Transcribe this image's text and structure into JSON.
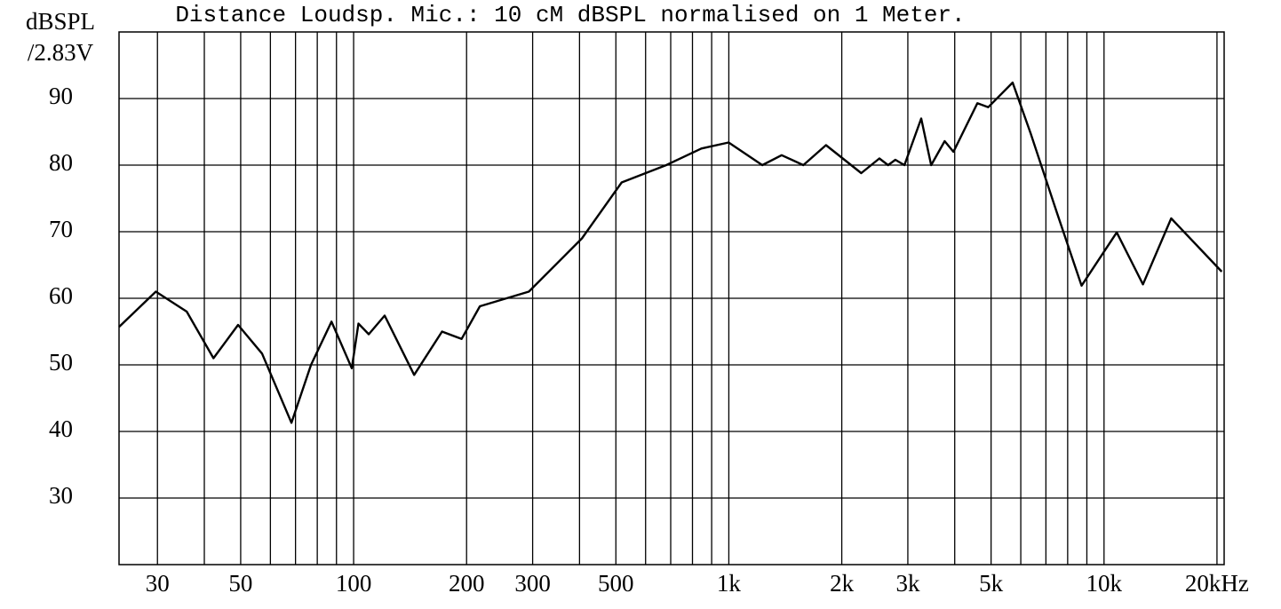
{
  "chart_data": {
    "type": "line",
    "title": "Distance Loudsp. Mic.: 10 cM dBSPL normalised on 1 Meter.",
    "y_label": [
      "dBSPL",
      "/2.83V"
    ],
    "log_x": true,
    "grid": true,
    "xlim": [
      23.7,
      20900
    ],
    "ylim": [
      20,
      100
    ],
    "yticks": [
      30,
      40,
      50,
      60,
      70,
      80,
      90
    ],
    "xticks": [
      30,
      50,
      100,
      200,
      300,
      500,
      {
        "value": 1000,
        "label": "1k"
      },
      {
        "value": 2000,
        "label": "2k"
      },
      {
        "value": 3000,
        "label": "3k"
      },
      {
        "value": 5000,
        "label": "5k"
      },
      {
        "value": 10000,
        "label": "10k"
      },
      {
        "value": 20000,
        "label": "20kHz"
      }
    ],
    "xgrid": [
      30,
      40,
      50,
      60,
      70,
      80,
      90,
      100,
      200,
      300,
      400,
      500,
      600,
      700,
      800,
      900,
      1000,
      2000,
      3000,
      4000,
      5000,
      6000,
      7000,
      8000,
      9000,
      10000,
      20000
    ],
    "series": [
      {
        "color": "#000000",
        "x": [
          23.7,
          29.7,
          35.9,
          42.3,
          49.2,
          57,
          68.3,
          77,
          87.3,
          98.9,
          103,
          109.7,
          121,
          145,
          172,
          194,
          217,
          293,
          406,
          518,
          681,
          845,
          999,
          1228,
          1383,
          1580,
          1815,
          2254,
          2519,
          2658,
          2779,
          2938,
          3257,
          3461,
          3760,
          3970,
          4597,
          4912,
          5706,
          6371,
          7495,
          8714,
          10810,
          12700,
          15100,
          20600
        ],
        "values": [
          55.7,
          61,
          58,
          51,
          56,
          51.7,
          41.3,
          50,
          56.5,
          49.5,
          56.2,
          54.6,
          57.4,
          48.5,
          55,
          53.9,
          58.8,
          61,
          69,
          77.4,
          80,
          82.5,
          83.4,
          80,
          81.5,
          80,
          83,
          78.8,
          81,
          80,
          80.8,
          80,
          87,
          80,
          83.6,
          82,
          89.3,
          88.7,
          92.4,
          84.8,
          72.8,
          61.9,
          69.9,
          62.1,
          72,
          64
        ]
      }
    ]
  }
}
